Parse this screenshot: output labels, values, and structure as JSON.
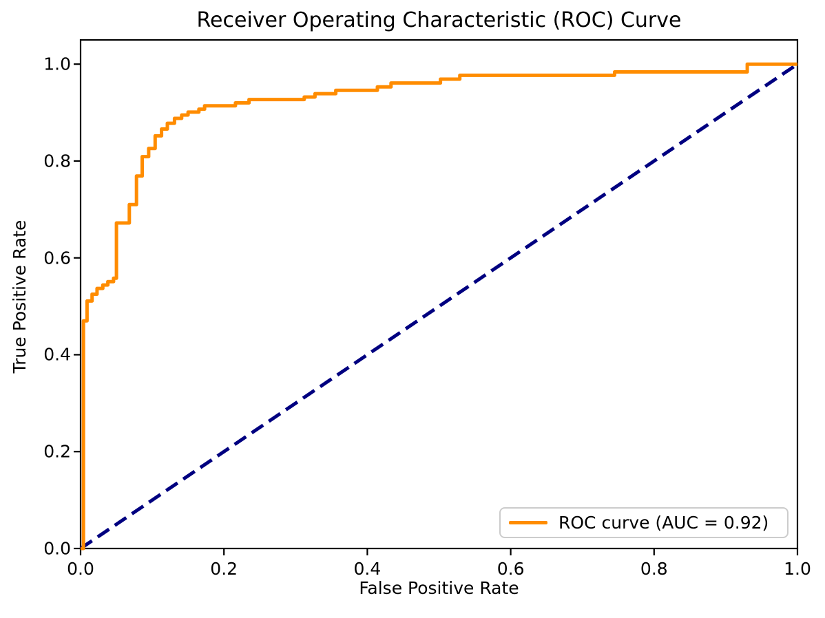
{
  "chart": {
    "title": "Receiver Operating Characteristic (ROC) Curve",
    "xlabel": "False Positive Rate",
    "ylabel": "True Positive Rate",
    "legend": {
      "label": "ROC curve (AUC = 0.92)",
      "position": "lower right"
    },
    "auc": "0.92"
  },
  "chart_data": {
    "type": "line",
    "title": "Receiver Operating Characteristic (ROC) Curve",
    "xlabel": "False Positive Rate",
    "ylabel": "True Positive Rate",
    "xlim": [
      0.0,
      1.0
    ],
    "ylim": [
      0.0,
      1.05
    ],
    "grid": false,
    "legend_position": "lower right",
    "xticks": [
      {
        "value": 0.0,
        "label": "0.0"
      },
      {
        "value": 0.2,
        "label": "0.2"
      },
      {
        "value": 0.4,
        "label": "0.4"
      },
      {
        "value": 0.6,
        "label": "0.6"
      },
      {
        "value": 0.8,
        "label": "0.8"
      },
      {
        "value": 1.0,
        "label": "1.0"
      }
    ],
    "yticks": [
      {
        "value": 0.0,
        "label": "0.0"
      },
      {
        "value": 0.2,
        "label": "0.2"
      },
      {
        "value": 0.4,
        "label": "0.4"
      },
      {
        "value": 0.6,
        "label": "0.6"
      },
      {
        "value": 0.8,
        "label": "0.8"
      },
      {
        "value": 1.0,
        "label": "1.0"
      }
    ],
    "series": [
      {
        "name": "ROC curve (AUC = 0.92)",
        "color": "#FF8C00",
        "line_style": "solid",
        "line_width": 5,
        "draw_style": "steps-post",
        "points": [
          [
            0.0,
            0.0
          ],
          [
            0.004,
            0.47
          ],
          [
            0.009,
            0.511
          ],
          [
            0.016,
            0.525
          ],
          [
            0.023,
            0.537
          ],
          [
            0.031,
            0.544
          ],
          [
            0.038,
            0.551
          ],
          [
            0.046,
            0.558
          ],
          [
            0.05,
            0.672
          ],
          [
            0.068,
            0.71
          ],
          [
            0.078,
            0.769
          ],
          [
            0.086,
            0.809
          ],
          [
            0.095,
            0.826
          ],
          [
            0.104,
            0.852
          ],
          [
            0.113,
            0.866
          ],
          [
            0.121,
            0.878
          ],
          [
            0.131,
            0.888
          ],
          [
            0.141,
            0.895
          ],
          [
            0.15,
            0.901
          ],
          [
            0.165,
            0.907
          ],
          [
            0.173,
            0.914
          ],
          [
            0.216,
            0.92
          ],
          [
            0.235,
            0.927
          ],
          [
            0.312,
            0.932
          ],
          [
            0.327,
            0.939
          ],
          [
            0.356,
            0.946
          ],
          [
            0.414,
            0.953
          ],
          [
            0.433,
            0.961
          ],
          [
            0.502,
            0.969
          ],
          [
            0.529,
            0.977
          ],
          [
            0.745,
            0.984
          ],
          [
            0.93,
            1.0
          ],
          [
            1.0,
            1.0
          ]
        ]
      },
      {
        "name": "chance-diagonal",
        "color": "#000080",
        "line_style": "dashed",
        "line_width": 5,
        "draw_style": "line",
        "points": [
          [
            0.0,
            0.0
          ],
          [
            1.0,
            1.0
          ]
        ]
      }
    ]
  }
}
